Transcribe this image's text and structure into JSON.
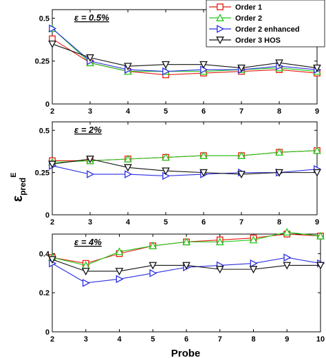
{
  "chart_data": {
    "type": "line",
    "xlabel": "Probe",
    "ylabel": "εpredE",
    "ylabel_main": "ε",
    "ylabel_sub": "pred",
    "ylabel_sup": "E",
    "legend": {
      "placement": "top-right",
      "entries": [
        {
          "name": "Order 1",
          "color": "#e8190f",
          "marker": "square"
        },
        {
          "name": "Order 2",
          "color": "#22c81a",
          "marker": "triangle-up"
        },
        {
          "name": "Order 2 enhanced",
          "color": "#2b2ee0",
          "marker": "triangle-right"
        },
        {
          "name": "Order 3 HOS",
          "color": "#111111",
          "marker": "triangle-down"
        }
      ]
    },
    "panels": [
      {
        "label": "ε = 0.5%",
        "x": [
          2,
          3,
          4,
          5,
          6,
          7,
          8,
          9
        ],
        "x_ticks": [
          "2",
          "3",
          "4",
          "5",
          "6",
          "7",
          "8",
          "9"
        ],
        "xlim": [
          2,
          9
        ],
        "ylim": [
          0,
          0.55
        ],
        "y_ticks": [
          "0",
          "0.25",
          "0.5"
        ],
        "y_tick_values": [
          0,
          0.25,
          0.5
        ],
        "series": [
          {
            "name": "Order 1",
            "values": [
              0.38,
              0.24,
              0.19,
              0.17,
              0.18,
              0.19,
              0.2,
              0.18
            ]
          },
          {
            "name": "Order 2",
            "values": [
              0.44,
              0.24,
              0.19,
              0.19,
              0.19,
              0.2,
              0.21,
              0.19
            ]
          },
          {
            "name": "Order 2 enhanced",
            "values": [
              0.44,
              0.25,
              0.2,
              0.19,
              0.2,
              0.2,
              0.22,
              0.2
            ]
          },
          {
            "name": "Order 3 HOS",
            "values": [
              0.35,
              0.27,
              0.22,
              0.23,
              0.23,
              0.21,
              0.24,
              0.21
            ]
          }
        ]
      },
      {
        "label": "ε = 2%",
        "x": [
          2,
          3,
          4,
          5,
          6,
          7,
          8,
          9
        ],
        "x_ticks": [
          "2",
          "3",
          "4",
          "5",
          "6",
          "7",
          "8",
          "9"
        ],
        "xlim": [
          2,
          9
        ],
        "ylim": [
          0,
          0.55
        ],
        "y_ticks": [
          "0",
          "0.25",
          "0.5"
        ],
        "y_tick_values": [
          0,
          0.25,
          0.5
        ],
        "series": [
          {
            "name": "Order 1",
            "values": [
              0.32,
              0.32,
              0.33,
              0.34,
              0.35,
              0.35,
              0.37,
              0.38
            ]
          },
          {
            "name": "Order 2",
            "values": [
              0.31,
              0.32,
              0.33,
              0.34,
              0.35,
              0.35,
              0.37,
              0.38
            ]
          },
          {
            "name": "Order 2 enhanced",
            "values": [
              0.29,
              0.24,
              0.24,
              0.23,
              0.24,
              0.25,
              0.25,
              0.27
            ]
          },
          {
            "name": "Order 3 HOS",
            "values": [
              0.3,
              0.33,
              0.28,
              0.26,
              0.25,
              0.24,
              0.25,
              0.25
            ]
          }
        ]
      },
      {
        "label": "ε = 4%",
        "x": [
          2,
          3,
          4,
          5,
          6,
          7,
          8,
          9,
          10
        ],
        "x_ticks": [
          "2",
          "3",
          "4",
          "5",
          "6",
          "7",
          "8",
          "9",
          "10"
        ],
        "xlim": [
          2,
          10
        ],
        "ylim": [
          0,
          0.5
        ],
        "y_ticks": [
          "0",
          "0.2",
          "0.4"
        ],
        "y_tick_values": [
          0,
          0.2,
          0.4
        ],
        "series": [
          {
            "name": "Order 1",
            "values": [
              0.38,
              0.35,
              0.4,
              0.44,
              0.46,
              0.47,
              0.48,
              0.5,
              0.49
            ]
          },
          {
            "name": "Order 2",
            "values": [
              0.38,
              0.34,
              0.41,
              0.44,
              0.46,
              0.46,
              0.47,
              0.51,
              0.49
            ]
          },
          {
            "name": "Order 2 enhanced",
            "values": [
              0.35,
              0.25,
              0.27,
              0.3,
              0.33,
              0.34,
              0.35,
              0.38,
              0.35
            ]
          },
          {
            "name": "Order 3 HOS",
            "values": [
              0.37,
              0.31,
              0.31,
              0.34,
              0.34,
              0.32,
              0.32,
              0.34,
              0.34
            ]
          }
        ]
      }
    ]
  }
}
